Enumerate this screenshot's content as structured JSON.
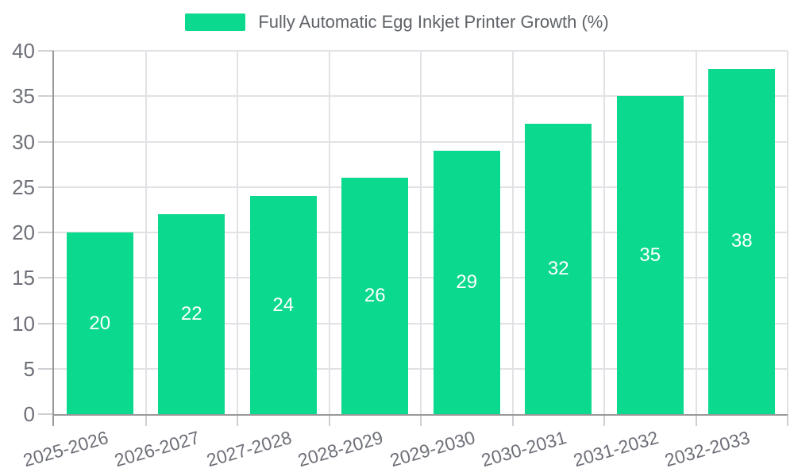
{
  "chart_data": {
    "type": "bar",
    "title": "Fully Automatic Egg Inkjet Printer Growth (%)",
    "legend": {
      "label": "Fully Automatic Egg Inkjet Printer Growth (%)",
      "position": "top-center"
    },
    "categories": [
      "2025-2026",
      "2026-2027",
      "2027-2028",
      "2028-2029",
      "2029-2030",
      "2030-2031",
      "2031-2032",
      "2032-2033"
    ],
    "values": [
      20,
      22,
      24,
      26,
      29,
      32,
      35,
      38
    ],
    "value_labels_inside_bars": true,
    "xlabel": "",
    "ylabel": "",
    "ylim": [
      0,
      40
    ],
    "yticks": [
      0,
      5,
      10,
      15,
      20,
      25,
      30,
      35,
      40
    ],
    "grid": "horizontal gridlines at each y tick and vertical gridlines at category boundaries",
    "x_label_rotation_deg": -16
  },
  "colors": {
    "bar": "#0bd98e",
    "value_label": "#ffffff",
    "axis_line": "#999999",
    "gridline": "#e2e2e6",
    "tick": "#cfcfd4",
    "axis_label": "#6e7079",
    "legend_text": "#5f6368",
    "background": "#ffffff"
  }
}
